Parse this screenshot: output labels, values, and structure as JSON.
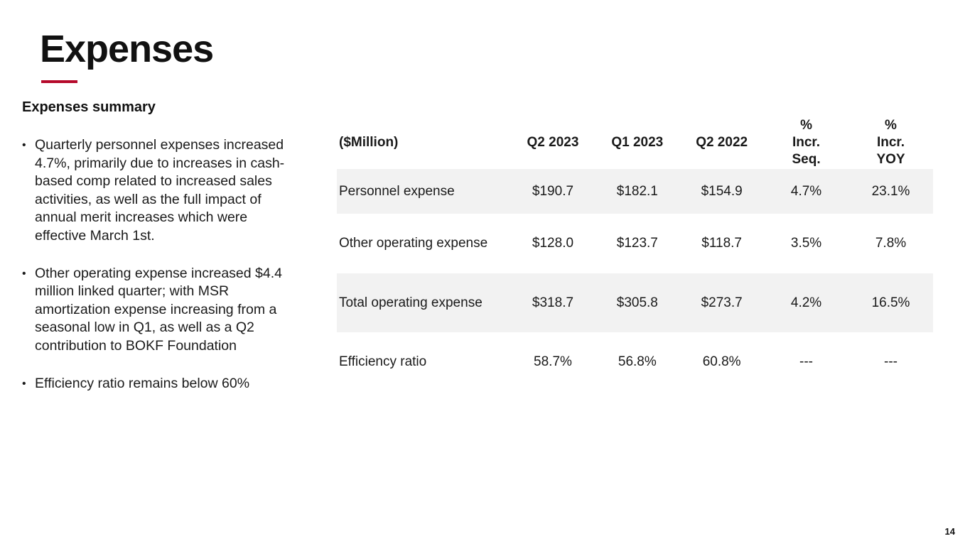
{
  "slide": {
    "title": "Expenses",
    "page_number": "14",
    "accent_color": "#b5092b"
  },
  "summary": {
    "heading": "Expenses summary",
    "bullets": [
      "Quarterly personnel expenses increased 4.7%, primarily due to increases in cash-based comp related to increased sales activities, as well as the full impact of annual merit increases which were effective March 1st.",
      "Other operating expense increased $4.4 million linked quarter; with MSR amortization expense increasing from a seasonal low in Q1, as well as a Q2 contribution to BOKF Foundation",
      "Efficiency ratio remains below 60%"
    ]
  },
  "table": {
    "headers": [
      "($Million)",
      "Q2 2023",
      "Q1 2023",
      "Q2 2022",
      "% Incr. Seq.",
      "% Incr. YOY"
    ],
    "rows": [
      [
        "Personnel expense",
        "$190.7",
        "$182.1",
        "$154.9",
        "4.7%",
        "23.1%"
      ],
      [
        "Other operating expense",
        "$128.0",
        "$123.7",
        "$118.7",
        "3.5%",
        "7.8%"
      ],
      [
        "Total operating expense",
        "$318.7",
        "$305.8",
        "$273.7",
        "4.2%",
        "16.5%"
      ],
      [
        "Efficiency ratio",
        "58.7%",
        "56.8%",
        "60.8%",
        "---",
        "---"
      ]
    ]
  }
}
